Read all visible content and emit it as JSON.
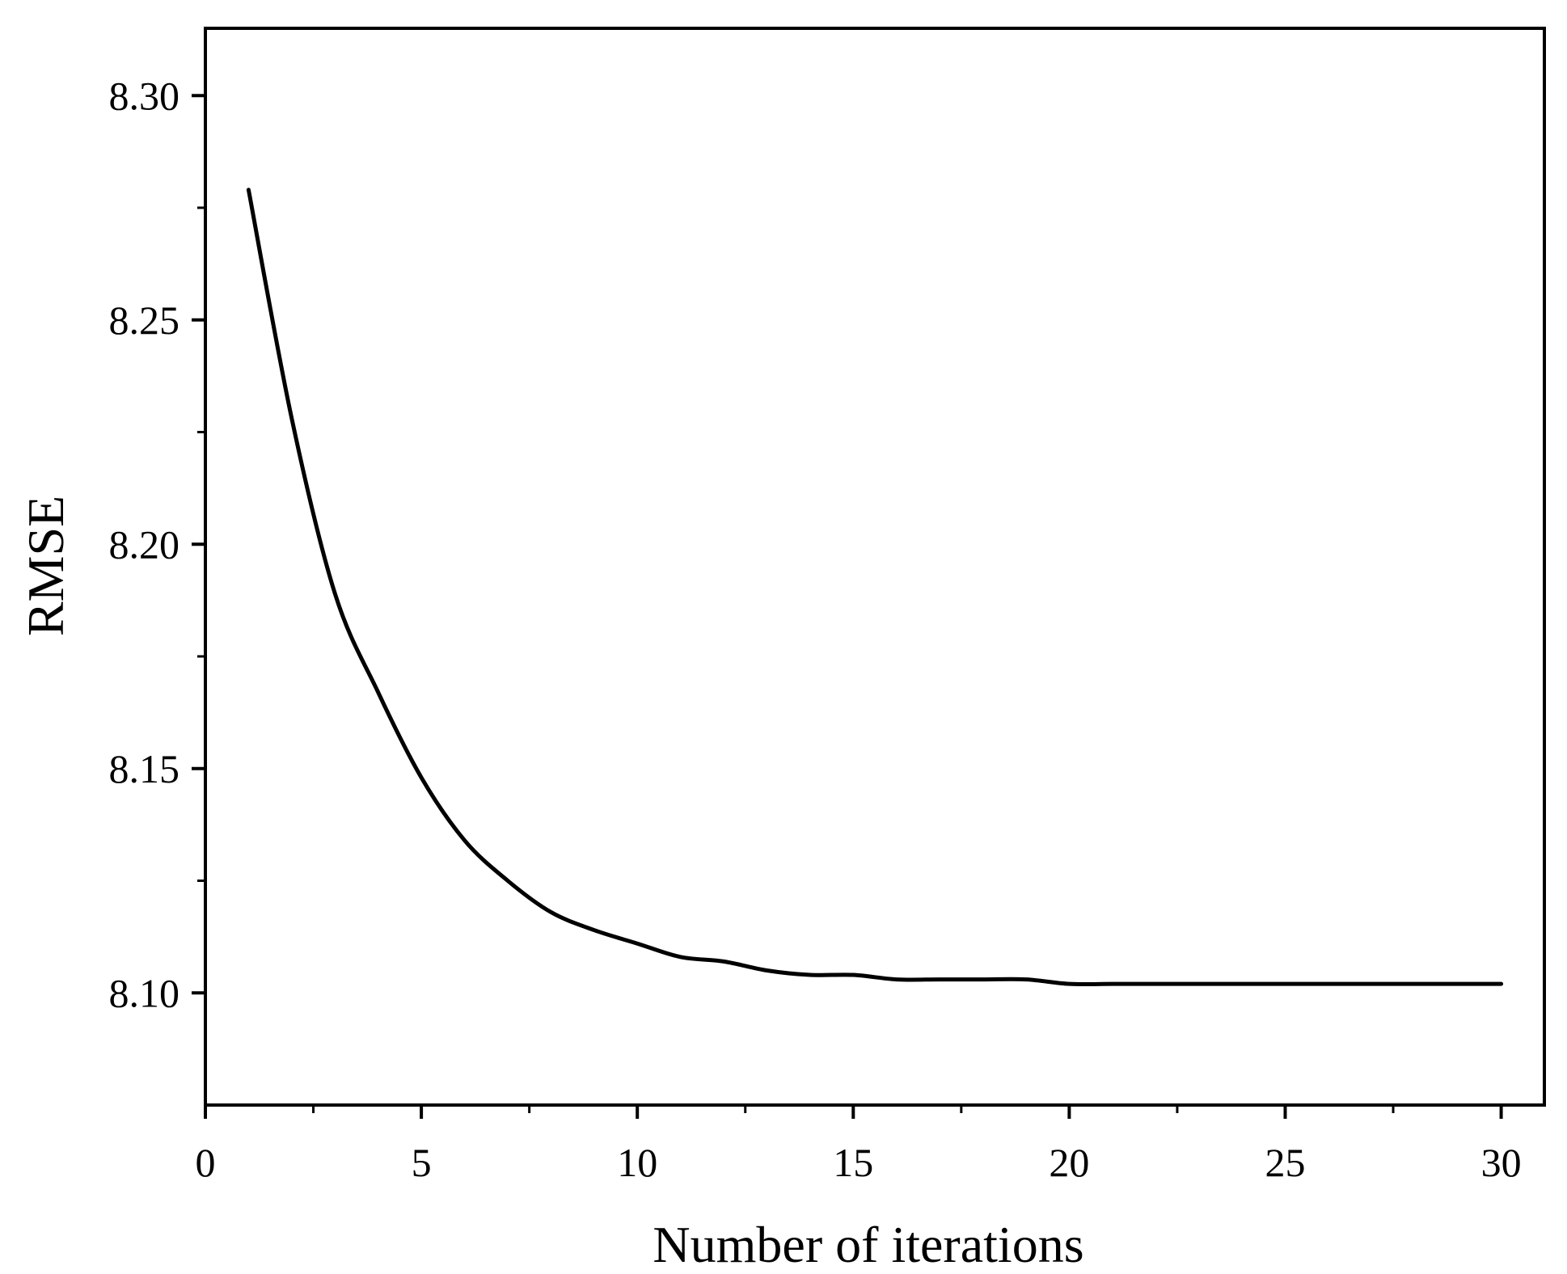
{
  "chart_data": {
    "type": "line",
    "title": "",
    "xlabel": "Number of iterations",
    "ylabel": "RMSE",
    "xlim": [
      0,
      31
    ],
    "ylim": [
      8.075,
      8.315
    ],
    "x_ticks": [
      0,
      5,
      10,
      15,
      20,
      25,
      30
    ],
    "x_tick_labels": [
      "0",
      "5",
      "10",
      "15",
      "20",
      "25",
      "30"
    ],
    "x_minor_ticks": [
      2.5,
      7.5,
      12.5,
      17.5,
      22.5,
      27.5
    ],
    "y_ticks": [
      8.1,
      8.15,
      8.2,
      8.25,
      8.3
    ],
    "y_tick_labels": [
      "8.10",
      "8.15",
      "8.20",
      "8.25",
      "8.30"
    ],
    "y_minor_ticks": [
      8.125,
      8.175,
      8.225,
      8.275
    ],
    "grid": false,
    "legend": "none",
    "line_color": "#000000",
    "series": [
      {
        "x": [
          1,
          2,
          3,
          4,
          5,
          6,
          7,
          8,
          9,
          10,
          11,
          12,
          13,
          14,
          15,
          16,
          17,
          18,
          19,
          20,
          21,
          22,
          23,
          24,
          25,
          26,
          27,
          28,
          29,
          30
        ],
        "values": [
          8.279,
          8.228,
          8.189,
          8.167,
          8.148,
          8.134,
          8.125,
          8.118,
          8.114,
          8.111,
          8.108,
          8.107,
          8.105,
          8.104,
          8.104,
          8.103,
          8.103,
          8.103,
          8.103,
          8.102,
          8.102,
          8.102,
          8.102,
          8.102,
          8.102,
          8.102,
          8.102,
          8.102,
          8.102,
          8.102
        ]
      }
    ]
  }
}
